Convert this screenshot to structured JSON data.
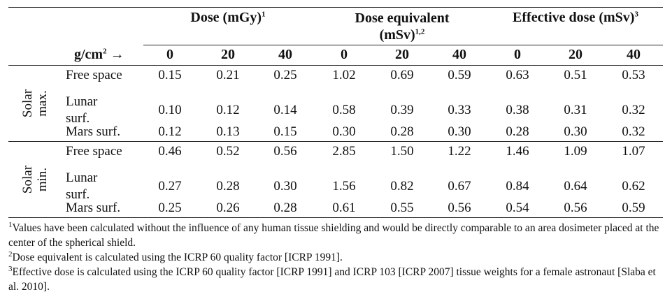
{
  "headers": {
    "dose": {
      "text": "Dose (mGy)",
      "sup": "1"
    },
    "dose_equivalent": {
      "line1": "Dose equivalent",
      "line2": "(mSv)",
      "sup": "1,2"
    },
    "effective_dose": {
      "text": "Effective dose (mSv)",
      "sup": "3"
    },
    "shield_label": {
      "base": "g/cm",
      "sup": "2",
      "arrow": "→"
    },
    "depths": [
      "0",
      "20",
      "40",
      "0",
      "20",
      "40",
      "0",
      "20",
      "40"
    ]
  },
  "groups": [
    {
      "label_line1": "Solar",
      "label_line2": "max.",
      "rows": [
        {
          "name": "Free space",
          "values": [
            "0.15",
            "0.21",
            "0.25",
            "1.02",
            "0.69",
            "0.59",
            "0.63",
            "0.51",
            "0.53"
          ]
        },
        {
          "name_line1": "Lunar",
          "name_line2": "surf.",
          "values": [
            "0.10",
            "0.12",
            "0.14",
            "0.58",
            "0.39",
            "0.33",
            "0.38",
            "0.31",
            "0.32"
          ]
        },
        {
          "name": "Mars surf.",
          "values": [
            "0.12",
            "0.13",
            "0.15",
            "0.30",
            "0.28",
            "0.30",
            "0.28",
            "0.30",
            "0.32"
          ]
        }
      ]
    },
    {
      "label_line1": "Solar",
      "label_line2": "min.",
      "rows": [
        {
          "name": "Free space",
          "values": [
            "0.46",
            "0.52",
            "0.56",
            "2.85",
            "1.50",
            "1.22",
            "1.46",
            "1.09",
            "1.07"
          ]
        },
        {
          "name_line1": "Lunar",
          "name_line2": "surf.",
          "values": [
            "0.27",
            "0.28",
            "0.30",
            "1.56",
            "0.82",
            "0.67",
            "0.84",
            "0.64",
            "0.62"
          ]
        },
        {
          "name": "Mars surf.",
          "values": [
            "0.25",
            "0.26",
            "0.28",
            "0.61",
            "0.55",
            "0.56",
            "0.54",
            "0.56",
            "0.59"
          ]
        }
      ]
    }
  ],
  "footnotes": [
    {
      "sup": "1",
      "text": "Values have been calculated without the influence of any human tissue shielding and would be directly comparable to an area dosimeter placed at the center of the spherical shield."
    },
    {
      "sup": "2",
      "text": "Dose equivalent is calculated using the ICRP 60 quality factor [ICRP 1991]."
    },
    {
      "sup": "3",
      "text": "Effective dose is calculated using the ICRP 60 quality factor [ICRP 1991] and ICRP 103 [ICRP 2007] tissue weights for a female astronaut [Slaba et al. 2010]."
    }
  ]
}
